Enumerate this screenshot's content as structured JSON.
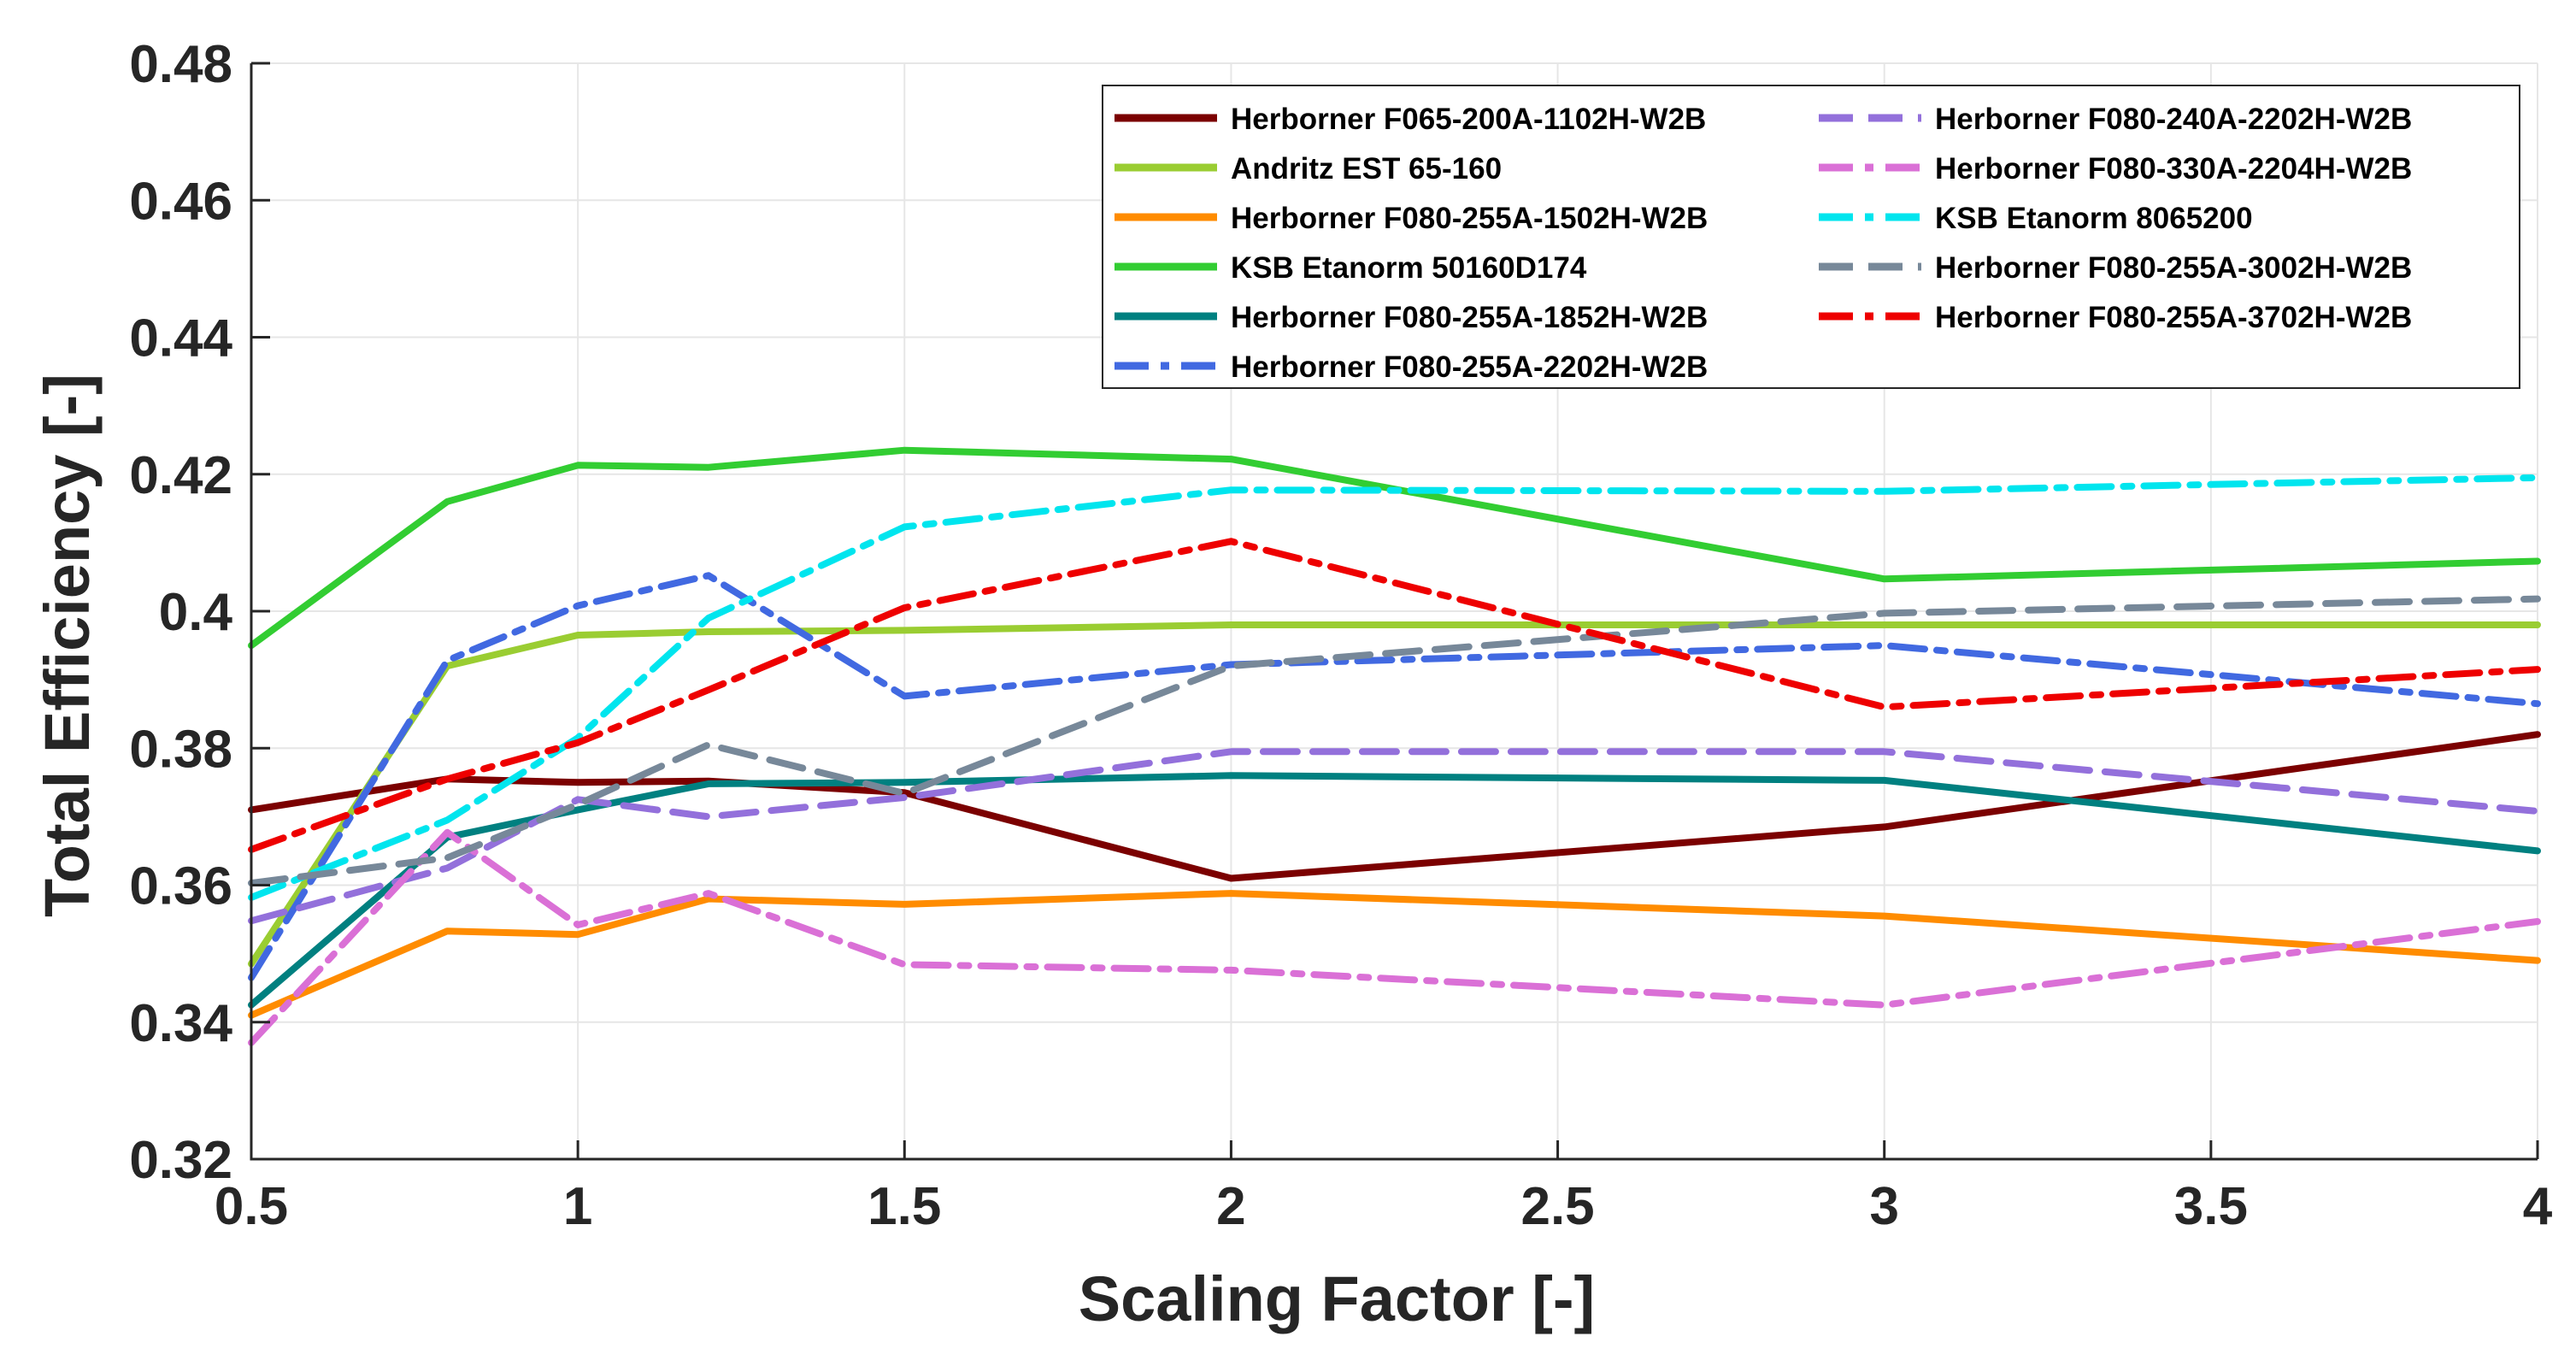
{
  "chart_data": {
    "type": "line",
    "title": "",
    "xlabel": "Scaling Factor [-]",
    "ylabel": "Total Efficiency [-]",
    "xlim": [
      0.5,
      4
    ],
    "ylim": [
      0.32,
      0.48
    ],
    "xticks": [
      0.5,
      1,
      1.5,
      2,
      2.5,
      3,
      3.5,
      4
    ],
    "xtick_labels": [
      "0.5",
      "1",
      "1.5",
      "2",
      "2.5",
      "3",
      "3.5",
      "4"
    ],
    "yticks": [
      0.32,
      0.34,
      0.36,
      0.38,
      0.4,
      0.42,
      0.44,
      0.46,
      0.48
    ],
    "ytick_labels": [
      "0.32",
      "0.34",
      "0.36",
      "0.38",
      "0.4",
      "0.42",
      "0.44",
      "0.46",
      "0.48"
    ],
    "grid": true,
    "legend_position": "top-right",
    "x": [
      0.5,
      0.8,
      1,
      1.2,
      1.5,
      2,
      3,
      4
    ],
    "series": [
      {
        "name": "Herborner F065-200A-1102H-W2B",
        "color": "#7b0000",
        "style": "solid",
        "values": [
          0.371,
          0.3755,
          0.375,
          0.3752,
          0.3735,
          0.361,
          0.3685,
          0.382
        ]
      },
      {
        "name": "Andritz EST 65-160",
        "color": "#9acd32",
        "style": "solid",
        "values": [
          0.3485,
          0.392,
          0.3965,
          0.397,
          0.3972,
          0.398,
          0.398,
          0.398
        ]
      },
      {
        "name": "Herborner F080-255A-1502H-W2B",
        "color": "#ff8c00",
        "style": "solid",
        "values": [
          0.341,
          0.3533,
          0.3528,
          0.358,
          0.3572,
          0.3588,
          0.3555,
          0.349
        ]
      },
      {
        "name": "KSB Etanorm 50160D174",
        "color": "#32cd32",
        "style": "solid",
        "values": [
          0.395,
          0.416,
          0.4213,
          0.421,
          0.4235,
          0.4222,
          0.4047,
          0.4073
        ]
      },
      {
        "name": "Herborner F080-255A-1852H-W2B",
        "color": "#008080",
        "style": "solid",
        "values": [
          0.3425,
          0.367,
          0.371,
          0.3748,
          0.375,
          0.376,
          0.3753,
          0.365
        ]
      },
      {
        "name": "Herborner F080-255A-2202H-W2B",
        "color": "#4169e1",
        "style": "dashdot",
        "values": [
          0.3465,
          0.3928,
          0.4008,
          0.4052,
          0.3876,
          0.3922,
          0.395,
          0.3865
        ]
      },
      {
        "name": "Herborner F080-240A-2202H-W2B",
        "color": "#9370db",
        "style": "dash",
        "values": [
          0.3548,
          0.3625,
          0.3725,
          0.37,
          0.3728,
          0.3795,
          0.3795,
          0.3708
        ]
      },
      {
        "name": "Herborner F080-330A-2204H-W2B",
        "color": "#da70d6",
        "style": "dashdot",
        "values": [
          0.337,
          0.3677,
          0.3542,
          0.3588,
          0.3484,
          0.3476,
          0.3425,
          0.3547
        ]
      },
      {
        "name": "KSB Etanorm 8065200",
        "color": "#00e5ee",
        "style": "dashdot",
        "values": [
          0.3582,
          0.3695,
          0.3815,
          0.399,
          0.4123,
          0.4177,
          0.4175,
          0.4195
        ]
      },
      {
        "name": "Herborner F080-255A-3002H-W2B",
        "color": "#778899",
        "style": "dash",
        "values": [
          0.3603,
          0.364,
          0.3718,
          0.3805,
          0.3734,
          0.392,
          0.3997,
          0.4018
        ]
      },
      {
        "name": "Herborner F080-255A-3702H-W2B",
        "color": "#ee0000",
        "style": "dashdot",
        "values": [
          0.3652,
          0.3755,
          0.3808,
          0.3885,
          0.4005,
          0.4102,
          0.386,
          0.3915
        ]
      }
    ]
  }
}
